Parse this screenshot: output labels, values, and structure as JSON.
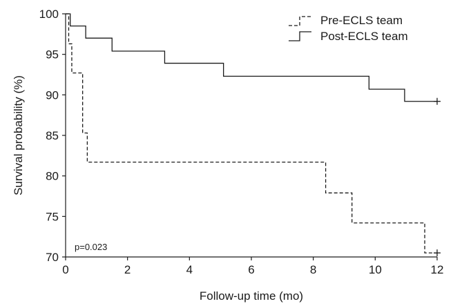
{
  "chart_data": {
    "type": "line",
    "xlabel": "Follow-up time (mo)",
    "ylabel": "Survival probability (%)",
    "xlim": [
      0,
      12
    ],
    "ylim": [
      70,
      100
    ],
    "xticks": [
      "0",
      "2",
      "4",
      "6",
      "8",
      "10",
      "12"
    ],
    "yticks": [
      "70",
      "75",
      "80",
      "85",
      "90",
      "95",
      "100"
    ],
    "grid": false,
    "legend": "top-right",
    "annotation": "p=0.023",
    "series": [
      {
        "name": "Pre-ECLS team",
        "style": "dashed",
        "color": "#1a1a1a",
        "x": [
          0,
          0.1,
          0.2,
          0.55,
          0.7,
          8.4,
          9.25,
          11.6,
          12
        ],
        "y": [
          100,
          96.3,
          92.7,
          85.3,
          81.7,
          77.9,
          74.2,
          70.5,
          70.5
        ],
        "censor_x": [
          12
        ],
        "censor_y": [
          70.5
        ]
      },
      {
        "name": "Post-ECLS team",
        "style": "solid",
        "color": "#1a1a1a",
        "x": [
          0,
          0.15,
          0.65,
          1.5,
          3.2,
          5.1,
          9.8,
          10.95,
          12
        ],
        "y": [
          100,
          98.5,
          97.0,
          95.4,
          93.9,
          92.3,
          90.7,
          89.2,
          89.2
        ],
        "censor_x": [
          12
        ],
        "censor_y": [
          89.2
        ]
      }
    ]
  }
}
